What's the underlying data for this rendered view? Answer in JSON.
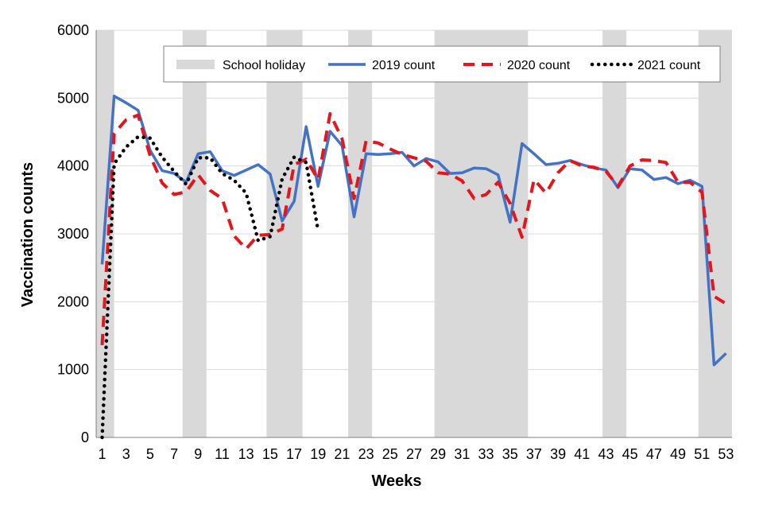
{
  "chart_data": {
    "type": "line",
    "xlabel": "Weeks",
    "ylabel": "Vaccination counts",
    "xlim": [
      1,
      53
    ],
    "ylim": [
      0,
      6000
    ],
    "y_ticks": [
      0,
      1000,
      2000,
      3000,
      4000,
      5000,
      6000
    ],
    "x_ticks": [
      1,
      3,
      5,
      7,
      9,
      11,
      13,
      15,
      17,
      19,
      21,
      23,
      25,
      27,
      29,
      31,
      33,
      35,
      37,
      39,
      41,
      43,
      45,
      47,
      49,
      51,
      53
    ],
    "grid": "horizontal",
    "legend_position": "top",
    "school_holidays": {
      "name": "School holiday",
      "color": "#d9d9d9",
      "ranges": [
        [
          1,
          1.5
        ],
        [
          8.2,
          9.2
        ],
        [
          15.2,
          17.2
        ],
        [
          22,
          23
        ],
        [
          29.2,
          36
        ],
        [
          43.2,
          44.2
        ],
        [
          51.2,
          53
        ]
      ]
    },
    "series": [
      {
        "name": "2019 count",
        "color": "#4472c4",
        "style": "solid",
        "x": [
          1,
          2,
          3,
          4,
          5,
          6,
          7,
          8,
          9,
          10,
          11,
          12,
          13,
          14,
          15,
          16,
          17,
          18,
          19,
          20,
          21,
          22,
          23,
          24,
          25,
          26,
          27,
          28,
          29,
          30,
          31,
          32,
          33,
          34,
          35,
          36,
          37,
          38,
          39,
          40,
          41,
          42,
          43,
          44,
          45,
          46,
          47,
          48,
          49,
          50,
          51,
          52,
          53
        ],
        "values": [
          2550,
          5030,
          4930,
          4820,
          4230,
          3930,
          3890,
          3760,
          4180,
          4210,
          3930,
          3860,
          3940,
          4020,
          3880,
          3190,
          3480,
          4580,
          3700,
          4510,
          4300,
          3250,
          4180,
          4170,
          4180,
          4200,
          4000,
          4110,
          4060,
          3890,
          3900,
          3970,
          3960,
          3870,
          3170,
          4330,
          4180,
          4020,
          4040,
          4080,
          4020,
          3970,
          3940,
          3680,
          3960,
          3940,
          3800,
          3830,
          3740,
          3790,
          3700,
          1070,
          1240
        ]
      },
      {
        "name": "2020 count",
        "color": "#e3161e",
        "style": "dashed",
        "x": [
          1,
          2,
          3,
          4,
          5,
          6,
          7,
          8,
          9,
          10,
          11,
          12,
          13,
          14,
          15,
          16,
          17,
          18,
          19,
          20,
          21,
          22,
          23,
          24,
          25,
          26,
          27,
          28,
          29,
          30,
          31,
          32,
          33,
          34,
          35,
          36,
          37,
          38,
          39,
          40,
          41,
          42,
          43,
          44,
          45,
          46,
          47,
          48,
          49,
          50,
          51,
          52,
          53
        ],
        "values": [
          1360,
          4480,
          4680,
          4750,
          4150,
          3750,
          3580,
          3620,
          3870,
          3640,
          3520,
          2970,
          2780,
          2980,
          2990,
          3070,
          4020,
          4100,
          3800,
          4770,
          4400,
          3520,
          4370,
          4340,
          4250,
          4170,
          4120,
          4070,
          3900,
          3880,
          3780,
          3520,
          3580,
          3760,
          3450,
          2950,
          3800,
          3600,
          3900,
          4080,
          4000,
          3980,
          3920,
          3700,
          4000,
          4090,
          4080,
          4050,
          3760,
          3760,
          3610,
          2080,
          1970
        ]
      },
      {
        "name": "2021 count",
        "color": "#000000",
        "style": "dotted",
        "x": [
          1,
          2,
          3,
          4,
          5,
          6,
          7,
          8,
          9,
          10,
          11,
          12,
          13,
          14,
          15,
          16,
          17,
          18,
          19
        ],
        "values": [
          0,
          4030,
          4280,
          4430,
          4410,
          4130,
          3920,
          3730,
          4120,
          4120,
          3890,
          3790,
          3600,
          2900,
          2960,
          3810,
          4130,
          4050,
          3050
        ]
      }
    ]
  }
}
